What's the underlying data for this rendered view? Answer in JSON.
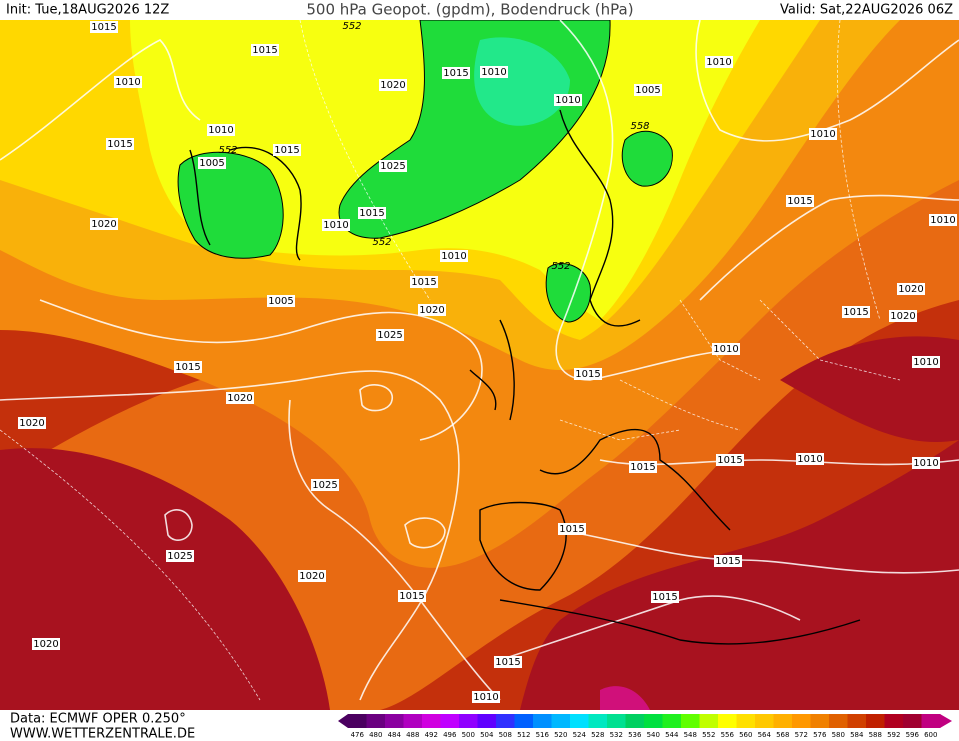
{
  "header": {
    "init": "Init: Tue,18AUG2026 12Z",
    "title": "500 hPa Geopot. (gpdm), Bodendruck (hPa)",
    "valid": "Valid: Sat,22AUG2026 06Z"
  },
  "footer": {
    "source": "Data: ECMWF OPER 0.250°",
    "site": "WWW.WETTERZENTRALE.DE"
  },
  "isobar_labels": [
    "1015",
    "1015",
    "552",
    "1010",
    "1015",
    "1010",
    "1020",
    "1010",
    "1010",
    "1005",
    "558",
    "1010",
    "1015",
    "552",
    "1015",
    "1005",
    "1010",
    "1025",
    "1015",
    "1010",
    "552",
    "1020",
    "1015",
    "1010",
    "1010",
    "552",
    "1015",
    "1005",
    "1020",
    "1020",
    "1015",
    "1020",
    "1025",
    "1010",
    "1015",
    "1010",
    "1015",
    "1020",
    "1020",
    "1015",
    "1015",
    "1010",
    "1010",
    "1025",
    "1015",
    "1025",
    "1020",
    "1015",
    "1015",
    "1015",
    "1020",
    "1015",
    "1010"
  ],
  "colorbar": {
    "labels": [
      "476",
      "480",
      "484",
      "488",
      "492",
      "496",
      "500",
      "504",
      "508",
      "512",
      "516",
      "520",
      "524",
      "528",
      "532",
      "536",
      "540",
      "544",
      "548",
      "552",
      "556",
      "560",
      "564",
      "568",
      "572",
      "576",
      "580",
      "584",
      "588",
      "592",
      "596",
      "600"
    ],
    "colors": [
      "#4b0060",
      "#6a0080",
      "#8a00a0",
      "#b000c0",
      "#d000e0",
      "#c000ff",
      "#9000ff",
      "#6000ff",
      "#3030ff",
      "#0060ff",
      "#0090ff",
      "#00b8ff",
      "#00e0ff",
      "#00e8c0",
      "#00e090",
      "#00d060",
      "#00e040",
      "#20f020",
      "#60ff00",
      "#c0ff00",
      "#ffff00",
      "#ffe000",
      "#ffc800",
      "#ffb000",
      "#ff9800",
      "#f08000",
      "#e06000",
      "#d04000",
      "#c02000",
      "#b00020",
      "#a00030",
      "#c00080"
    ]
  }
}
